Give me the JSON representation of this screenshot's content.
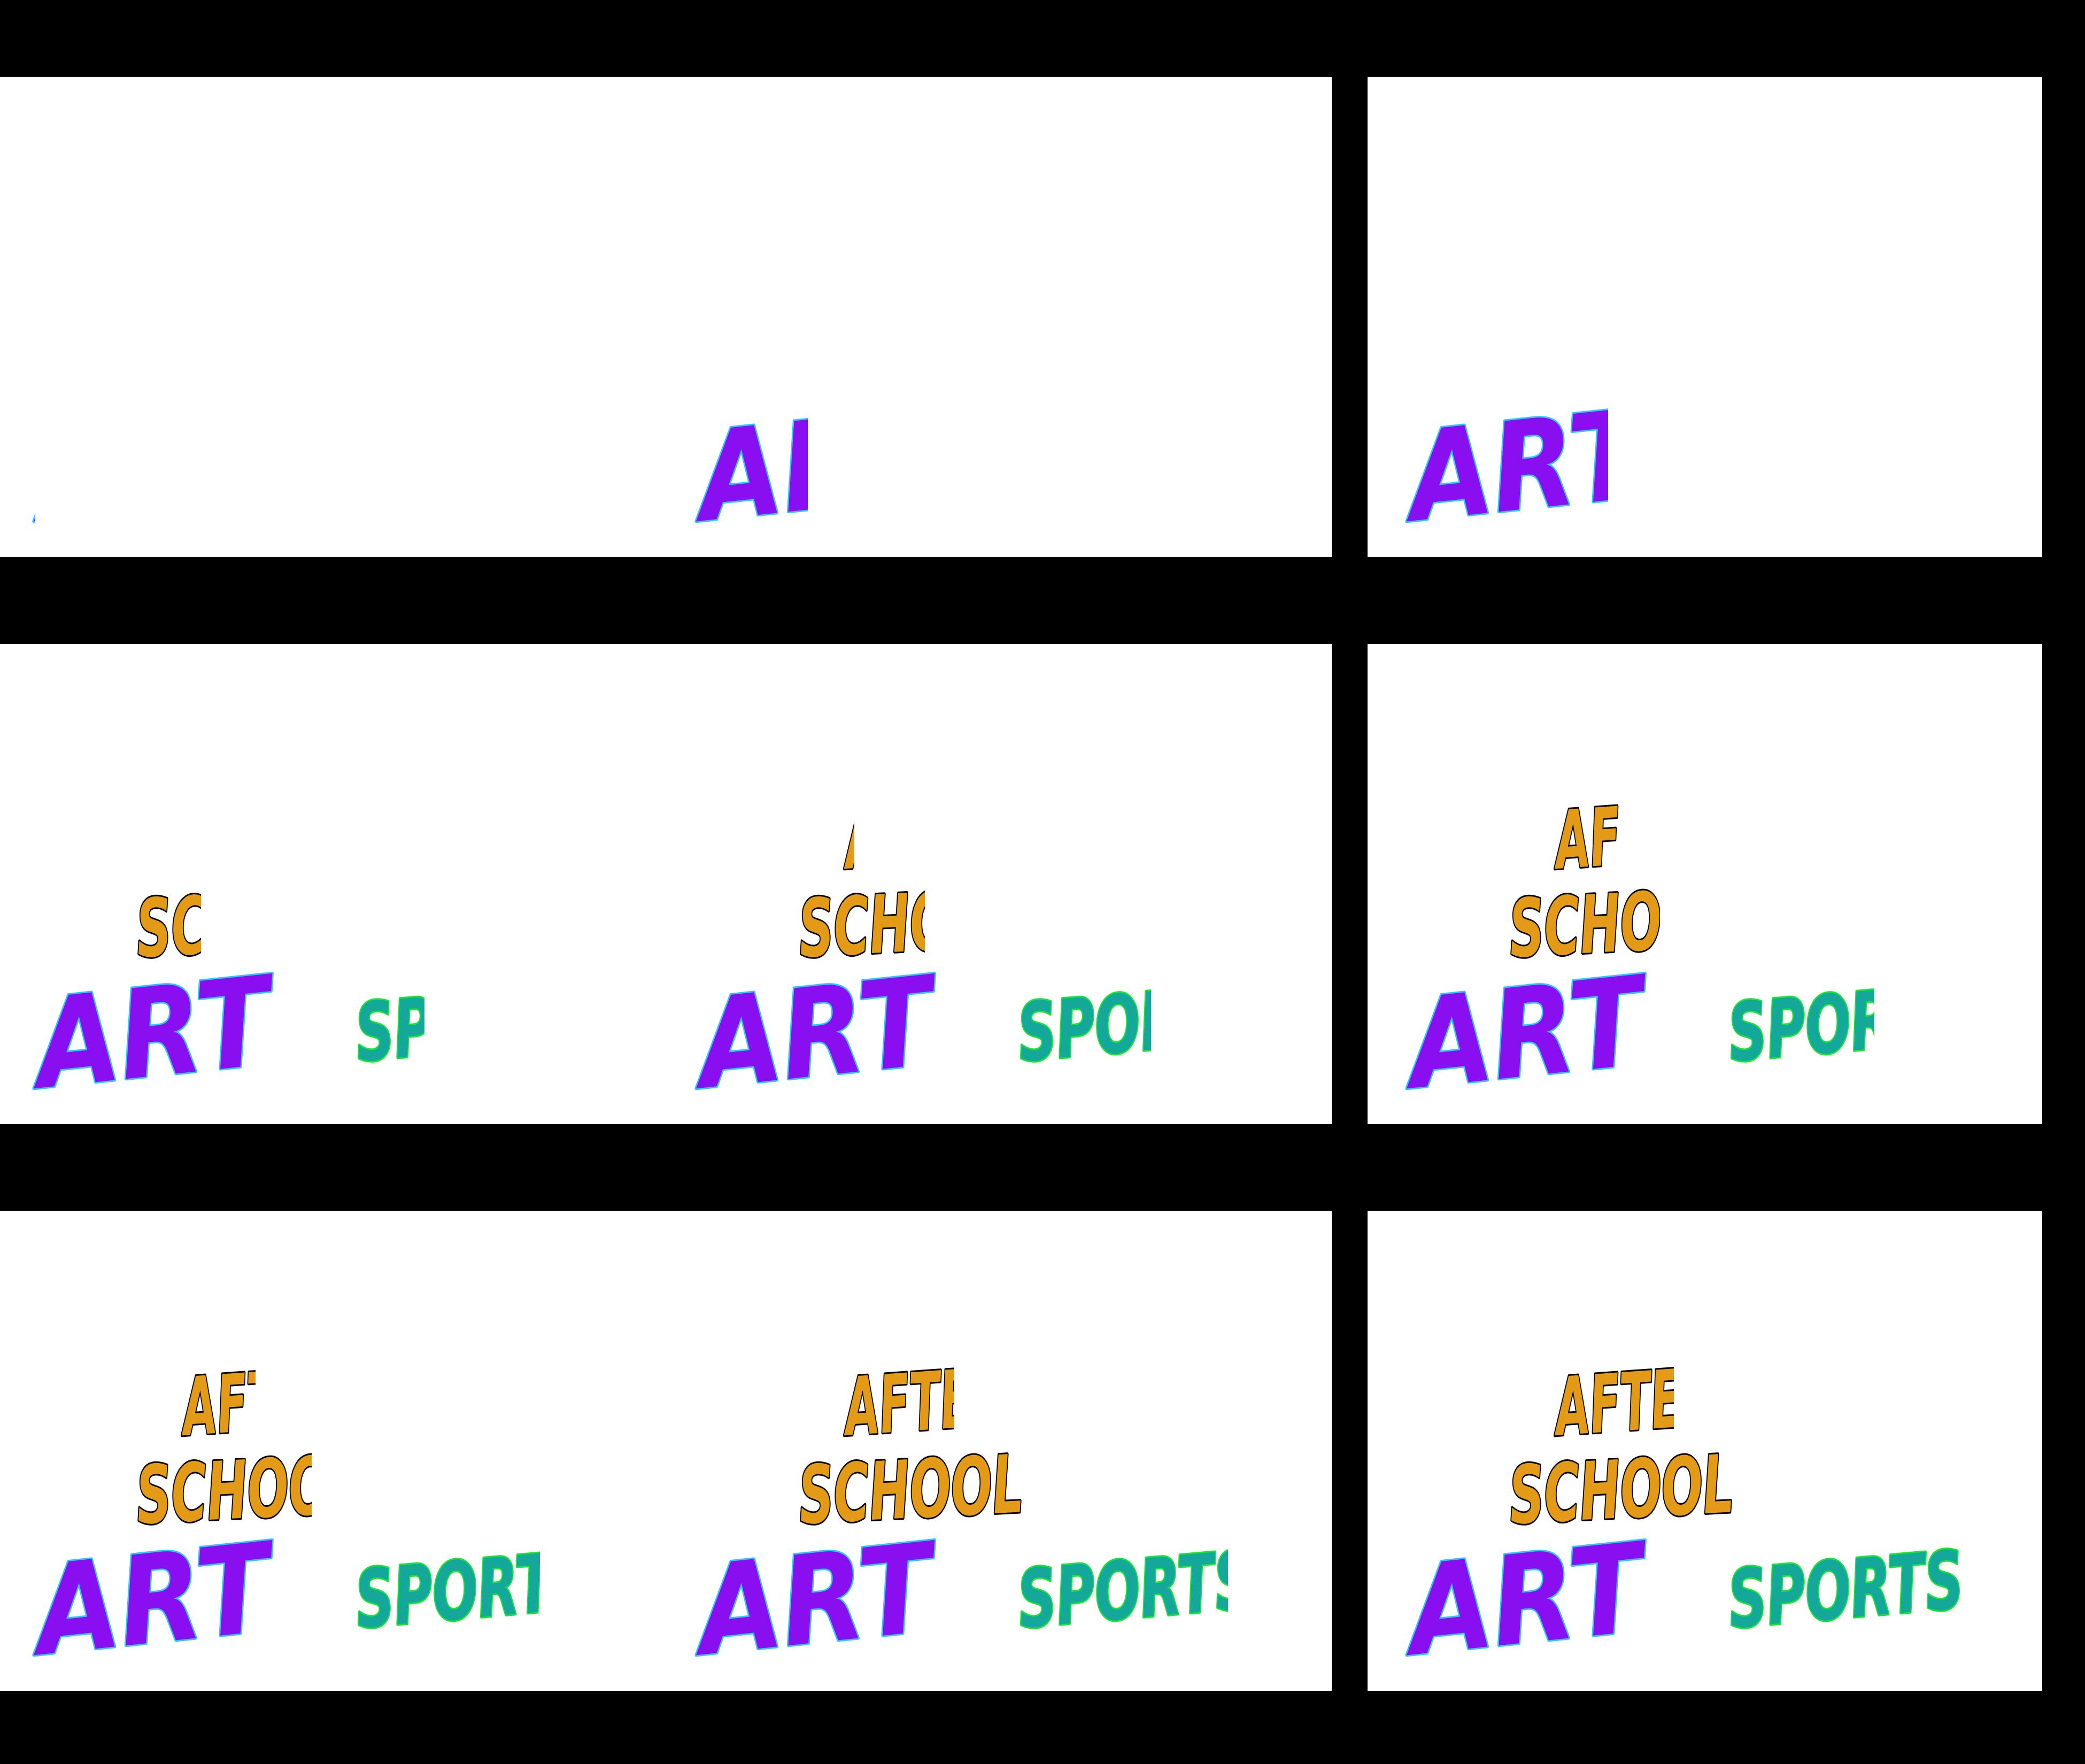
{
  "frames": [
    {
      "index": 1,
      "after_school": "",
      "art": "A",
      "sports": ""
    },
    {
      "index": 2,
      "after_school": "",
      "art": "A",
      "sports": ""
    },
    {
      "index": 3,
      "after_school": "",
      "art": "A",
      "sports": ""
    },
    {
      "index": 4,
      "after_school": "",
      "art": "A",
      "sports": ""
    },
    {
      "index": 5,
      "after_school": "",
      "art": "A",
      "sports": ""
    },
    {
      "index": 6,
      "after_school": "",
      "art": "A",
      "sports": ""
    },
    {
      "index": 7,
      "after_school": "",
      "art": "A",
      "sports": ""
    },
    {
      "index": 8,
      "after_school": "",
      "art": "A",
      "sports": ""
    },
    {
      "index": 9,
      "after_school": "",
      "art": "A",
      "sports": ""
    }
  ],
  "words": {
    "after": "AFTER",
    "school": "SCHOOL",
    "art": "ART",
    "sports": "SPORTS"
  },
  "reveal": [
    {
      "after": 0,
      "school": 0,
      "art": 0.02,
      "sports": 0
    },
    {
      "after": 0,
      "school": 0,
      "art": 0.45,
      "sports": 0
    },
    {
      "after": 0,
      "school": 0,
      "art": 0.8,
      "sports": 0
    },
    {
      "after": 0,
      "school": 0.3,
      "art": 1,
      "sports": 0.3
    },
    {
      "after": 0.1,
      "school": 0.55,
      "art": 1,
      "sports": 0.55
    },
    {
      "after": 0.4,
      "school": 0.65,
      "art": 1,
      "sports": 0.6
    },
    {
      "after": 0.45,
      "school": 0.75,
      "art": 1,
      "sports": 0.75
    },
    {
      "after": 0.65,
      "school": 0.95,
      "art": 1,
      "sports": 0.85
    },
    {
      "after": 0.7,
      "school": 1,
      "art": 1,
      "sports": 1
    }
  ],
  "colors": {
    "background": "#000000",
    "panel": "#ffffff",
    "after_school_fill": "#e39a16",
    "after_school_stroke": "#000000",
    "art_fill": "#8a0ff0",
    "art_outline": "#2ec8ff",
    "sports_fill": "#13a89a",
    "sports_outline": "#19e632"
  }
}
